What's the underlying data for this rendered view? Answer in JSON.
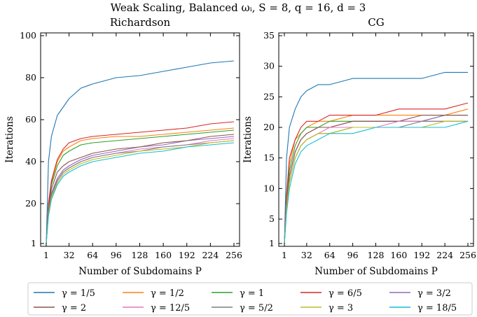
{
  "figure": {
    "suptitle": "Weak Scaling, Balanced ωᵢ, S = 8, q = 16, d = 3",
    "legend_position": "bottom"
  },
  "chart_data": [
    {
      "type": "line",
      "title": "Richardson",
      "xlabel": "Number of Subdomains P",
      "ylabel": "Iterations",
      "xlim": [
        1,
        256
      ],
      "ylim": [
        1,
        100
      ],
      "x_ticks": [
        1,
        32,
        64,
        96,
        128,
        160,
        192,
        224,
        256
      ],
      "y_ticks": [
        1,
        20,
        40,
        60,
        80,
        100
      ],
      "grid": false,
      "series": [
        {
          "name": "γ = 1/5",
          "color": "#1f77b4",
          "x": [
            1,
            4,
            8,
            16,
            24,
            32,
            48,
            64,
            96,
            128,
            160,
            192,
            224,
            256
          ],
          "values": [
            1,
            40,
            52,
            62,
            66,
            70,
            75,
            77,
            80,
            81,
            83,
            85,
            87,
            88
          ]
        },
        {
          "name": "γ = 1/2",
          "color": "#ff7f0e",
          "x": [
            1,
            4,
            8,
            16,
            24,
            32,
            48,
            64,
            96,
            128,
            160,
            192,
            224,
            256
          ],
          "values": [
            1,
            20,
            30,
            40,
            45,
            47,
            50,
            51,
            52,
            52,
            53,
            54,
            55,
            56
          ]
        },
        {
          "name": "γ = 1",
          "color": "#2ca02c",
          "x": [
            1,
            4,
            8,
            16,
            24,
            32,
            48,
            64,
            96,
            128,
            160,
            192,
            224,
            256
          ],
          "values": [
            1,
            19,
            29,
            38,
            43,
            45,
            48,
            49,
            50,
            51,
            52,
            53,
            54,
            55
          ]
        },
        {
          "name": "γ = 6/5",
          "color": "#d62728",
          "x": [
            1,
            4,
            8,
            16,
            24,
            32,
            48,
            64,
            96,
            128,
            160,
            192,
            224,
            256
          ],
          "values": [
            1,
            20,
            31,
            41,
            46,
            49,
            51,
            52,
            53,
            54,
            55,
            56,
            58,
            59
          ]
        },
        {
          "name": "γ = 3/2",
          "color": "#9467bd",
          "x": [
            1,
            4,
            8,
            16,
            24,
            32,
            48,
            64,
            96,
            128,
            160,
            192,
            224,
            256
          ],
          "values": [
            1,
            17,
            25,
            32,
            36,
            38,
            41,
            43,
            45,
            47,
            48,
            50,
            51,
            52
          ]
        },
        {
          "name": "γ = 2",
          "color": "#8c564b",
          "x": [
            1,
            4,
            8,
            16,
            24,
            32,
            48,
            64,
            96,
            128,
            160,
            192,
            224,
            256
          ],
          "values": [
            1,
            18,
            27,
            35,
            38,
            40,
            42,
            44,
            46,
            47,
            49,
            50,
            52,
            53
          ]
        },
        {
          "name": "γ = 12/5",
          "color": "#e377c2",
          "x": [
            1,
            4,
            8,
            16,
            24,
            32,
            48,
            64,
            96,
            128,
            160,
            192,
            224,
            256
          ],
          "values": [
            1,
            16,
            24,
            31,
            35,
            37,
            40,
            42,
            44,
            46,
            47,
            48,
            50,
            51
          ]
        },
        {
          "name": "γ = 5/2",
          "color": "#7f7f7f",
          "x": [
            1,
            4,
            8,
            16,
            24,
            32,
            48,
            64,
            96,
            128,
            160,
            192,
            224,
            256
          ],
          "values": [
            1,
            16,
            24,
            31,
            35,
            37,
            40,
            42,
            44,
            45,
            47,
            48,
            49,
            50
          ]
        },
        {
          "name": "γ = 3",
          "color": "#bcbd22",
          "x": [
            1,
            4,
            8,
            16,
            24,
            32,
            48,
            64,
            96,
            128,
            160,
            192,
            224,
            256
          ],
          "values": [
            1,
            15,
            23,
            30,
            34,
            36,
            39,
            41,
            43,
            45,
            46,
            47,
            49,
            50
          ]
        },
        {
          "name": "γ = 18/5",
          "color": "#17becf",
          "x": [
            1,
            4,
            8,
            16,
            24,
            32,
            48,
            64,
            96,
            128,
            160,
            192,
            224,
            256
          ],
          "values": [
            1,
            14,
            22,
            29,
            33,
            35,
            38,
            40,
            42,
            44,
            45,
            47,
            48,
            49
          ]
        }
      ]
    },
    {
      "type": "line",
      "title": "CG",
      "xlabel": "Number of Subdomains P",
      "ylabel": "Iterations",
      "xlim": [
        1,
        256
      ],
      "ylim": [
        1,
        35
      ],
      "x_ticks": [
        1,
        32,
        64,
        96,
        128,
        160,
        192,
        224,
        256
      ],
      "y_ticks": [
        1,
        5,
        10,
        15,
        20,
        25,
        30,
        35
      ],
      "grid": false,
      "series": [
        {
          "name": "γ = 1/5",
          "color": "#1f77b4",
          "x": [
            1,
            4,
            8,
            16,
            24,
            32,
            48,
            64,
            96,
            128,
            160,
            192,
            224,
            256
          ],
          "values": [
            1,
            15,
            20,
            23,
            25,
            26,
            27,
            27,
            28,
            28,
            28,
            28,
            29,
            29
          ]
        },
        {
          "name": "γ = 1/2",
          "color": "#ff7f0e",
          "x": [
            1,
            4,
            8,
            16,
            24,
            32,
            48,
            64,
            96,
            128,
            160,
            192,
            224,
            256
          ],
          "values": [
            1,
            8,
            14,
            18,
            19,
            20,
            21,
            21,
            22,
            22,
            22,
            22,
            22,
            23
          ]
        },
        {
          "name": "γ = 1",
          "color": "#2ca02c",
          "x": [
            1,
            4,
            8,
            16,
            24,
            32,
            48,
            64,
            96,
            128,
            160,
            192,
            224,
            256
          ],
          "values": [
            1,
            8,
            13,
            17,
            19,
            20,
            20,
            21,
            21,
            21,
            21,
            21,
            22,
            22
          ]
        },
        {
          "name": "γ = 6/5",
          "color": "#d62728",
          "x": [
            1,
            4,
            8,
            16,
            24,
            32,
            48,
            64,
            96,
            128,
            160,
            192,
            224,
            256
          ],
          "values": [
            1,
            9,
            15,
            18,
            20,
            21,
            21,
            22,
            22,
            22,
            23,
            23,
            23,
            24
          ]
        },
        {
          "name": "γ = 3/2",
          "color": "#9467bd",
          "x": [
            1,
            4,
            8,
            16,
            24,
            32,
            48,
            64,
            96,
            128,
            160,
            192,
            224,
            256
          ],
          "values": [
            1,
            7,
            12,
            16,
            18,
            19,
            20,
            20,
            21,
            21,
            21,
            21,
            22,
            22
          ]
        },
        {
          "name": "γ = 2",
          "color": "#8c564b",
          "x": [
            1,
            4,
            8,
            16,
            24,
            32,
            48,
            64,
            96,
            128,
            160,
            192,
            224,
            256
          ],
          "values": [
            1,
            7,
            12,
            16,
            18,
            19,
            20,
            20,
            21,
            21,
            21,
            22,
            22,
            22
          ]
        },
        {
          "name": "γ = 12/5",
          "color": "#e377c2",
          "x": [
            1,
            4,
            8,
            16,
            24,
            32,
            48,
            64,
            96,
            128,
            160,
            192,
            224,
            256
          ],
          "values": [
            1,
            7,
            11,
            15,
            17,
            18,
            19,
            20,
            20,
            20,
            21,
            21,
            21,
            21
          ]
        },
        {
          "name": "γ = 5/2",
          "color": "#7f7f7f",
          "x": [
            1,
            4,
            8,
            16,
            24,
            32,
            48,
            64,
            96,
            128,
            160,
            192,
            224,
            256
          ],
          "values": [
            1,
            7,
            11,
            15,
            17,
            18,
            19,
            19,
            20,
            20,
            20,
            21,
            21,
            21
          ]
        },
        {
          "name": "γ = 3",
          "color": "#bcbd22",
          "x": [
            1,
            4,
            8,
            16,
            24,
            32,
            48,
            64,
            96,
            128,
            160,
            192,
            224,
            256
          ],
          "values": [
            1,
            7,
            11,
            15,
            17,
            18,
            19,
            19,
            20,
            20,
            20,
            20,
            21,
            21
          ]
        },
        {
          "name": "γ = 18/5",
          "color": "#17becf",
          "x": [
            1,
            4,
            8,
            16,
            24,
            32,
            48,
            64,
            96,
            128,
            160,
            192,
            224,
            256
          ],
          "values": [
            1,
            6,
            10,
            14,
            16,
            17,
            18,
            19,
            19,
            20,
            20,
            20,
            20,
            21
          ]
        }
      ]
    }
  ]
}
